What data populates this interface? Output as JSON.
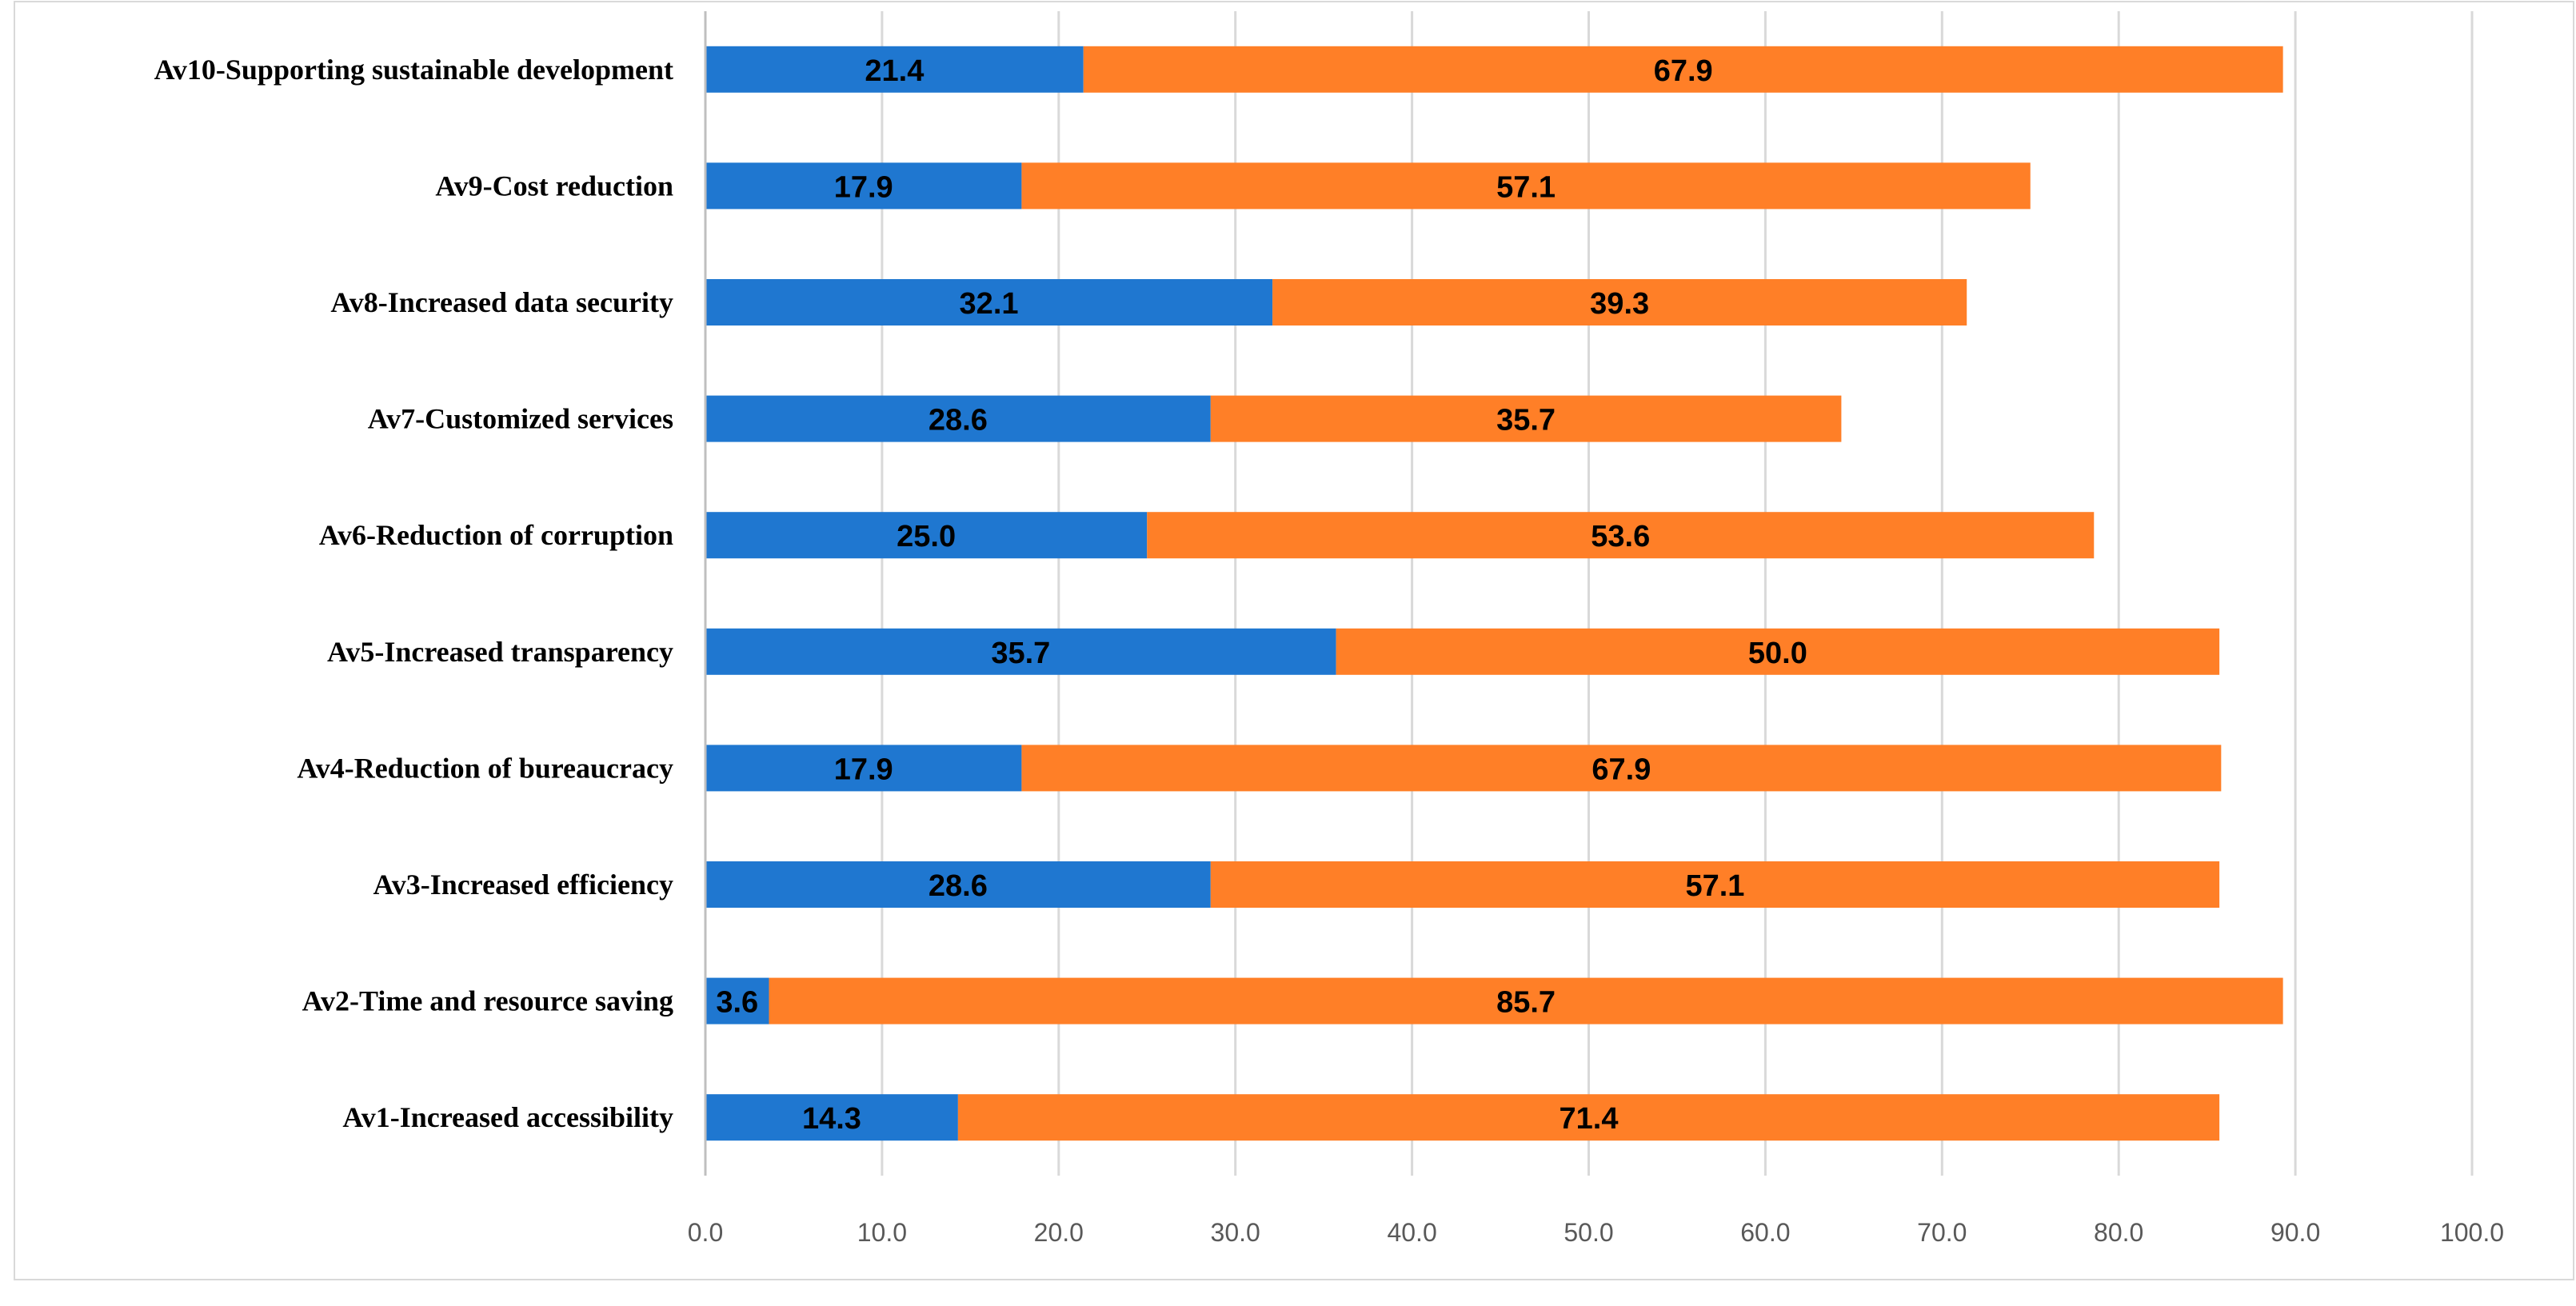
{
  "chart_data": {
    "type": "bar",
    "orientation": "horizontal",
    "stacked": true,
    "title": "",
    "xlabel": "",
    "ylabel": "",
    "categories": [
      "Av1-Increased accessibility",
      "Av2-Time and resource saving",
      "Av3-Increased efficiency",
      "Av4-Reduction of bureaucracy",
      "Av5-Increased transparency",
      "Av6-Reduction of corruption",
      "Av7-Customized services",
      "Av8-Increased data security",
      "Av9-Cost reduction",
      "Av10-Supporting sustainable development"
    ],
    "series": [
      {
        "name": "Series 1",
        "color": "#1f77d0",
        "values": [
          14.3,
          3.6,
          28.6,
          17.9,
          35.7,
          25.0,
          28.6,
          32.1,
          17.9,
          21.4
        ]
      },
      {
        "name": "Series 2",
        "color": "#ff7f27",
        "values": [
          71.4,
          85.7,
          57.1,
          67.9,
          50.0,
          53.6,
          35.7,
          39.3,
          57.1,
          67.9
        ]
      }
    ],
    "xlim": [
      0,
      100
    ],
    "xticks": [
      0,
      10,
      20,
      30,
      40,
      50,
      60,
      70,
      80,
      90,
      100
    ],
    "tick_labels": [
      "0.0",
      "10.0",
      "20.0",
      "30.0",
      "40.0",
      "50.0",
      "60.0",
      "70.0",
      "80.0",
      "90.0",
      "100.0"
    ],
    "grid": true,
    "legend": "none",
    "data_label_format": "one decimal"
  }
}
